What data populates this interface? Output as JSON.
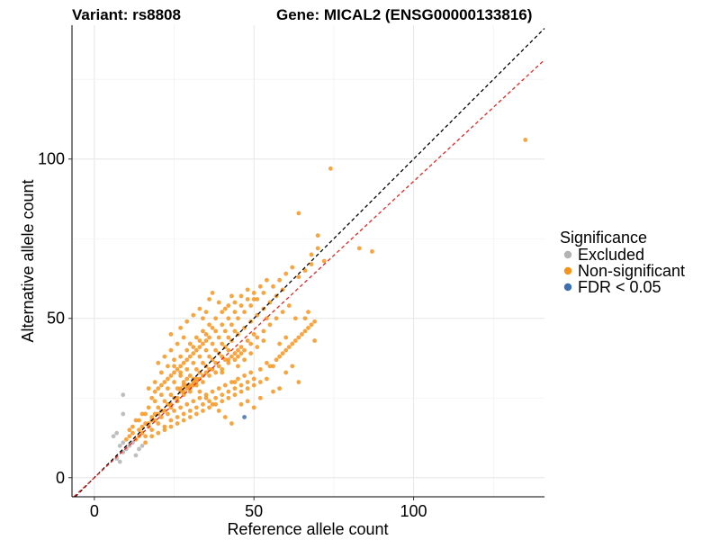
{
  "chart_data": {
    "type": "scatter",
    "title_left": "Variant: rs8808",
    "title_right": "Gene: MICAL2 (ENSG00000133816)",
    "xlabel": "Reference allele count",
    "ylabel": "Alternative allele count",
    "xlim": [
      -7,
      141
    ],
    "ylim": [
      -6,
      142
    ],
    "x_ticks": [
      0,
      50,
      100
    ],
    "y_ticks": [
      0,
      50,
      100
    ],
    "grid": true,
    "legend": {
      "title": "Significance",
      "position": "right",
      "entries": [
        {
          "label": "Excluded",
          "color": "#B3B3B3"
        },
        {
          "label": "Non-significant",
          "color": "#F7941D"
        },
        {
          "label": "FDR < 0.05",
          "color": "#3E6FAE"
        }
      ]
    },
    "reference_lines": [
      {
        "name": "identity",
        "slope": 1.0,
        "intercept": 0,
        "color": "#000000",
        "style": "dashed"
      },
      {
        "name": "fit",
        "slope": 0.93,
        "intercept": 0,
        "color": "#E8251F",
        "style": "dashed"
      }
    ],
    "series": [
      {
        "color": "#B3B3B3",
        "points": [
          [
            7,
            6
          ],
          [
            8,
            5
          ],
          [
            9,
            8
          ],
          [
            8,
            10
          ],
          [
            9,
            11
          ],
          [
            10,
            9
          ],
          [
            11,
            10
          ],
          [
            12,
            11
          ],
          [
            13,
            7
          ],
          [
            14,
            9
          ],
          [
            15,
            10
          ],
          [
            9,
            20
          ],
          [
            9,
            26
          ],
          [
            7,
            14
          ],
          [
            6,
            13
          ]
        ]
      },
      {
        "color": "#3E6FAE",
        "points": [
          [
            47,
            19
          ]
        ]
      },
      {
        "color": "#F7941D",
        "points": [
          [
            10,
            12
          ],
          [
            11,
            13
          ],
          [
            12,
            14
          ],
          [
            13,
            12
          ],
          [
            14,
            15
          ],
          [
            15,
            16
          ],
          [
            16,
            13
          ],
          [
            17,
            17
          ],
          [
            18,
            15
          ],
          [
            19,
            18
          ],
          [
            20,
            17
          ],
          [
            21,
            19
          ],
          [
            22,
            16
          ],
          [
            23,
            20
          ],
          [
            24,
            18
          ],
          [
            25,
            21
          ],
          [
            26,
            19
          ],
          [
            27,
            22
          ],
          [
            28,
            20
          ],
          [
            29,
            23
          ],
          [
            30,
            21
          ],
          [
            31,
            24
          ],
          [
            32,
            22
          ],
          [
            33,
            25
          ],
          [
            34,
            23
          ],
          [
            35,
            26
          ],
          [
            36,
            24
          ],
          [
            37,
            27
          ],
          [
            38,
            25
          ],
          [
            39,
            28
          ],
          [
            40,
            26
          ],
          [
            41,
            29
          ],
          [
            42,
            27
          ],
          [
            43,
            30
          ],
          [
            44,
            28
          ],
          [
            45,
            31
          ],
          [
            46,
            29
          ],
          [
            47,
            32
          ],
          [
            48,
            30
          ],
          [
            49,
            33
          ],
          [
            50,
            31
          ],
          [
            52,
            34
          ],
          [
            54,
            36
          ],
          [
            56,
            35
          ],
          [
            58,
            38
          ],
          [
            60,
            40
          ],
          [
            62,
            42
          ],
          [
            64,
            44
          ],
          [
            66,
            46
          ],
          [
            68,
            48
          ],
          [
            18,
            25
          ],
          [
            20,
            28
          ],
          [
            22,
            30
          ],
          [
            24,
            32
          ],
          [
            26,
            34
          ],
          [
            28,
            36
          ],
          [
            30,
            38
          ],
          [
            32,
            40
          ],
          [
            34,
            42
          ],
          [
            36,
            44
          ],
          [
            38,
            46
          ],
          [
            40,
            48
          ],
          [
            42,
            50
          ],
          [
            44,
            52
          ],
          [
            46,
            54
          ],
          [
            48,
            56
          ],
          [
            50,
            58
          ],
          [
            20,
            22
          ],
          [
            22,
            24
          ],
          [
            24,
            26
          ],
          [
            26,
            28
          ],
          [
            28,
            30
          ],
          [
            30,
            32
          ],
          [
            32,
            34
          ],
          [
            34,
            36
          ],
          [
            36,
            38
          ],
          [
            38,
            40
          ],
          [
            40,
            42
          ],
          [
            42,
            44
          ],
          [
            44,
            46
          ],
          [
            15,
            20
          ],
          [
            17,
            22
          ],
          [
            19,
            24
          ],
          [
            21,
            26
          ],
          [
            23,
            28
          ],
          [
            25,
            30
          ],
          [
            27,
            32
          ],
          [
            29,
            34
          ],
          [
            31,
            36
          ],
          [
            33,
            38
          ],
          [
            35,
            40
          ],
          [
            37,
            42
          ],
          [
            39,
            44
          ],
          [
            41,
            46
          ],
          [
            43,
            48
          ],
          [
            45,
            50
          ],
          [
            47,
            52
          ],
          [
            49,
            54
          ],
          [
            51,
            56
          ],
          [
            53,
            58
          ],
          [
            16,
            11
          ],
          [
            18,
            13
          ],
          [
            20,
            14
          ],
          [
            22,
            15
          ],
          [
            24,
            16
          ],
          [
            26,
            17
          ],
          [
            28,
            18
          ],
          [
            30,
            19
          ],
          [
            32,
            20
          ],
          [
            34,
            21
          ],
          [
            36,
            22
          ],
          [
            38,
            23
          ],
          [
            40,
            24
          ],
          [
            42,
            25
          ],
          [
            44,
            26
          ],
          [
            46,
            27
          ],
          [
            48,
            28
          ],
          [
            50,
            29
          ],
          [
            52,
            30
          ],
          [
            54,
            31
          ],
          [
            19,
            30
          ],
          [
            21,
            33
          ],
          [
            23,
            35
          ],
          [
            25,
            37
          ],
          [
            27,
            38
          ],
          [
            29,
            40
          ],
          [
            31,
            41
          ],
          [
            33,
            43
          ],
          [
            35,
            45
          ],
          [
            37,
            47
          ],
          [
            21,
            21
          ],
          [
            23,
            23
          ],
          [
            25,
            25
          ],
          [
            27,
            27
          ],
          [
            29,
            29
          ],
          [
            31,
            31
          ],
          [
            33,
            33
          ],
          [
            35,
            35
          ],
          [
            37,
            37
          ],
          [
            39,
            39
          ],
          [
            41,
            41
          ],
          [
            43,
            43
          ],
          [
            45,
            45
          ],
          [
            47,
            47
          ],
          [
            49,
            49
          ],
          [
            51,
            51
          ],
          [
            53,
            53
          ],
          [
            55,
            55
          ],
          [
            57,
            57
          ],
          [
            59,
            59
          ],
          [
            24,
            22
          ],
          [
            26,
            24
          ],
          [
            28,
            26
          ],
          [
            30,
            28
          ],
          [
            32,
            30
          ],
          [
            34,
            32
          ],
          [
            36,
            34
          ],
          [
            38,
            36
          ],
          [
            40,
            38
          ],
          [
            42,
            40
          ],
          [
            25,
            35
          ],
          [
            27,
            33
          ],
          [
            29,
            31
          ],
          [
            31,
            29
          ],
          [
            33,
            27
          ],
          [
            35,
            25
          ],
          [
            37,
            23
          ],
          [
            39,
            21
          ],
          [
            41,
            19
          ],
          [
            43,
            17
          ],
          [
            14,
            18
          ],
          [
            16,
            20
          ],
          [
            18,
            19
          ],
          [
            20,
            20
          ],
          [
            22,
            21
          ],
          [
            24,
            23
          ],
          [
            26,
            25
          ],
          [
            28,
            27
          ],
          [
            30,
            29
          ],
          [
            32,
            31
          ],
          [
            17,
            28
          ],
          [
            19,
            27
          ],
          [
            21,
            29
          ],
          [
            23,
            31
          ],
          [
            25,
            33
          ],
          [
            27,
            35
          ],
          [
            29,
            37
          ],
          [
            31,
            39
          ],
          [
            33,
            41
          ],
          [
            35,
            43
          ],
          [
            38,
            50
          ],
          [
            40,
            52
          ],
          [
            42,
            54
          ],
          [
            44,
            55
          ],
          [
            46,
            57
          ],
          [
            48,
            59
          ],
          [
            36,
            48
          ],
          [
            34,
            46
          ],
          [
            32,
            44
          ],
          [
            30,
            42
          ],
          [
            45,
            38
          ],
          [
            47,
            40
          ],
          [
            49,
            42
          ],
          [
            51,
            44
          ],
          [
            53,
            46
          ],
          [
            55,
            48
          ],
          [
            57,
            50
          ],
          [
            59,
            52
          ],
          [
            61,
            54
          ],
          [
            63,
            50
          ],
          [
            55,
            35
          ],
          [
            57,
            37
          ],
          [
            59,
            39
          ],
          [
            61,
            41
          ],
          [
            63,
            43
          ],
          [
            65,
            45
          ],
          [
            67,
            47
          ],
          [
            69,
            49
          ],
          [
            58,
            42
          ],
          [
            60,
            44
          ],
          [
            45,
            35
          ],
          [
            47,
            37
          ],
          [
            49,
            39
          ],
          [
            51,
            41
          ],
          [
            53,
            43
          ],
          [
            50,
            45
          ],
          [
            48,
            43
          ],
          [
            46,
            41
          ],
          [
            44,
            39
          ],
          [
            42,
            37
          ],
          [
            20,
            36
          ],
          [
            22,
            38
          ],
          [
            24,
            40
          ],
          [
            26,
            42
          ],
          [
            28,
            44
          ],
          [
            24,
            45
          ],
          [
            27,
            47
          ],
          [
            29,
            49
          ],
          [
            31,
            51
          ],
          [
            33,
            53
          ],
          [
            56,
            60
          ],
          [
            58,
            62
          ],
          [
            60,
            64
          ],
          [
            62,
            66
          ],
          [
            64,
            63
          ],
          [
            66,
            65
          ],
          [
            68,
            70
          ],
          [
            70,
            72
          ],
          [
            72,
            68
          ],
          [
            54,
            50
          ],
          [
            64,
            83
          ],
          [
            74,
            97
          ],
          [
            87,
            71
          ],
          [
            83,
            72
          ],
          [
            70,
            76
          ],
          [
            68,
            67
          ],
          [
            69,
            43
          ],
          [
            66,
            50
          ],
          [
            67,
            52
          ],
          [
            60,
            33
          ],
          [
            58,
            28
          ],
          [
            62,
            35
          ],
          [
            64,
            30
          ],
          [
            50,
            22
          ],
          [
            52,
            25
          ],
          [
            48,
            24
          ],
          [
            46,
            23
          ],
          [
            56,
            27
          ],
          [
            44,
            30
          ],
          [
            40,
            33
          ],
          [
            135,
            106
          ],
          [
            12,
            16
          ],
          [
            13,
            18
          ],
          [
            11,
            15
          ],
          [
            14,
            13
          ],
          [
            15,
            14
          ],
          [
            16,
            17
          ],
          [
            17,
            16
          ],
          [
            18,
            18
          ],
          [
            19,
            20
          ],
          [
            36,
            56
          ],
          [
            37,
            58
          ],
          [
            39,
            55
          ],
          [
            41,
            53
          ],
          [
            43,
            57
          ],
          [
            35,
            52
          ],
          [
            52,
            60
          ],
          [
            54,
            62
          ],
          [
            50,
            56
          ],
          [
            34,
            50
          ],
          [
            27,
            28
          ],
          [
            28,
            29
          ],
          [
            29,
            28
          ],
          [
            30,
            27
          ],
          [
            31,
            30
          ],
          [
            32,
            29
          ],
          [
            33,
            31
          ],
          [
            34,
            30
          ],
          [
            35,
            33
          ],
          [
            36,
            32
          ],
          [
            37,
            34
          ],
          [
            38,
            33
          ],
          [
            39,
            35
          ],
          [
            40,
            34
          ],
          [
            41,
            37
          ],
          [
            42,
            36
          ],
          [
            43,
            38
          ],
          [
            44,
            37
          ],
          [
            45,
            40
          ],
          [
            46,
            39
          ]
        ]
      }
    ]
  }
}
